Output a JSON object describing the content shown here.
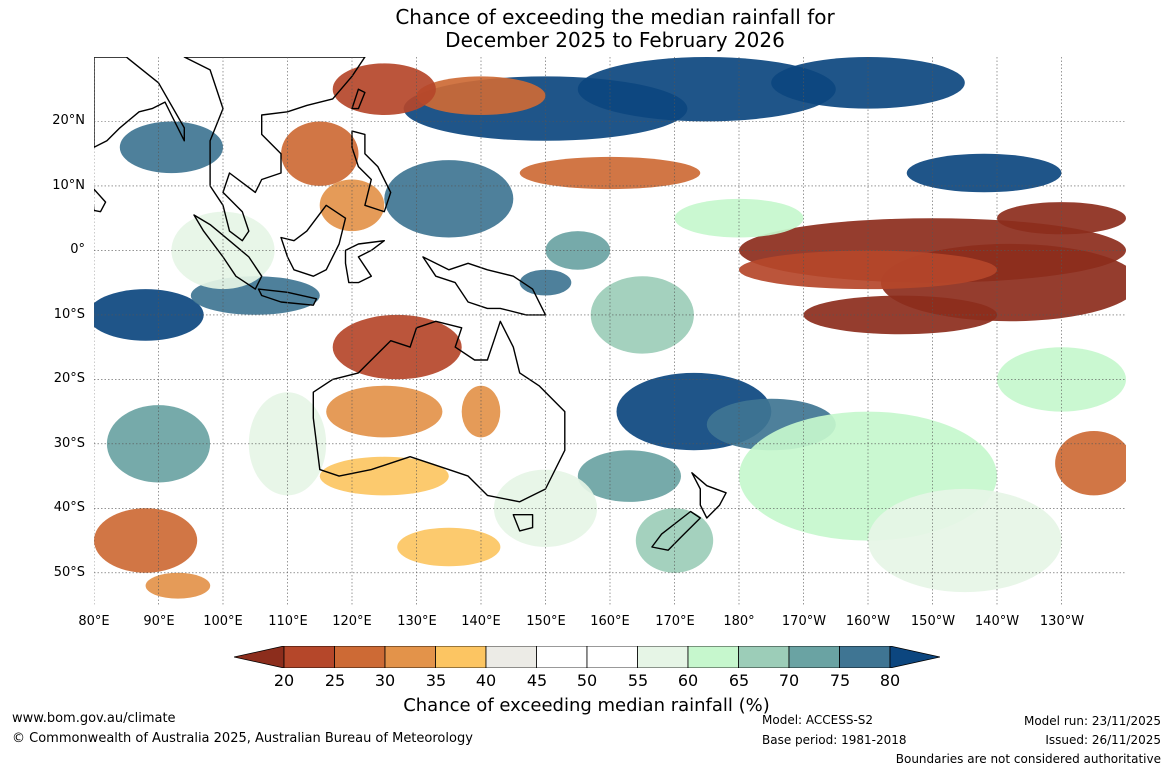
{
  "title": {
    "line1": "Chance of exceeding the median rainfall for",
    "line2": "December 2025 to February 2026"
  },
  "map": {
    "lat_labels": [
      "20°N",
      "10°N",
      "0°",
      "10°S",
      "20°S",
      "30°S",
      "40°S",
      "50°S"
    ],
    "lon_labels": [
      "80°E",
      "90°E",
      "100°E",
      "110°E",
      "120°E",
      "130°E",
      "140°E",
      "150°E",
      "160°E",
      "170°E",
      "180°",
      "170°W",
      "160°W",
      "150°W",
      "140°W",
      "130°W"
    ],
    "extent": {
      "lon_min": 80,
      "lon_max": 240,
      "lat_min": -55,
      "lat_max": 30
    },
    "grid": true
  },
  "colorbar": {
    "ticks": [
      "20",
      "25",
      "30",
      "35",
      "40",
      "45",
      "50",
      "55",
      "60",
      "65",
      "70",
      "75",
      "80"
    ],
    "colors": [
      "#8c2d1c",
      "#b5472a",
      "#cd6a35",
      "#e3934a",
      "#fcc562",
      "#ecebe6",
      "#ffffff",
      "#ffffff",
      "#e6f5e6",
      "#c6f7cd",
      "#9ccdb8",
      "#6aa3a3",
      "#3f7593",
      "#0c467f"
    ],
    "title": "Chance of exceeding median rainfall (%)"
  },
  "footer": {
    "website": "www.bom.gov.au/climate",
    "copyright": "© Commonwealth of Australia 2025, Australian Bureau of Meteorology",
    "model": "Model: ACCESS-S2",
    "base_period": "Base period: 1981-2018",
    "model_run": "Model run: 23/11/2025",
    "issued": "Issued: 26/11/2025",
    "disclaimer": "Boundaries are not considered authoritative"
  }
}
